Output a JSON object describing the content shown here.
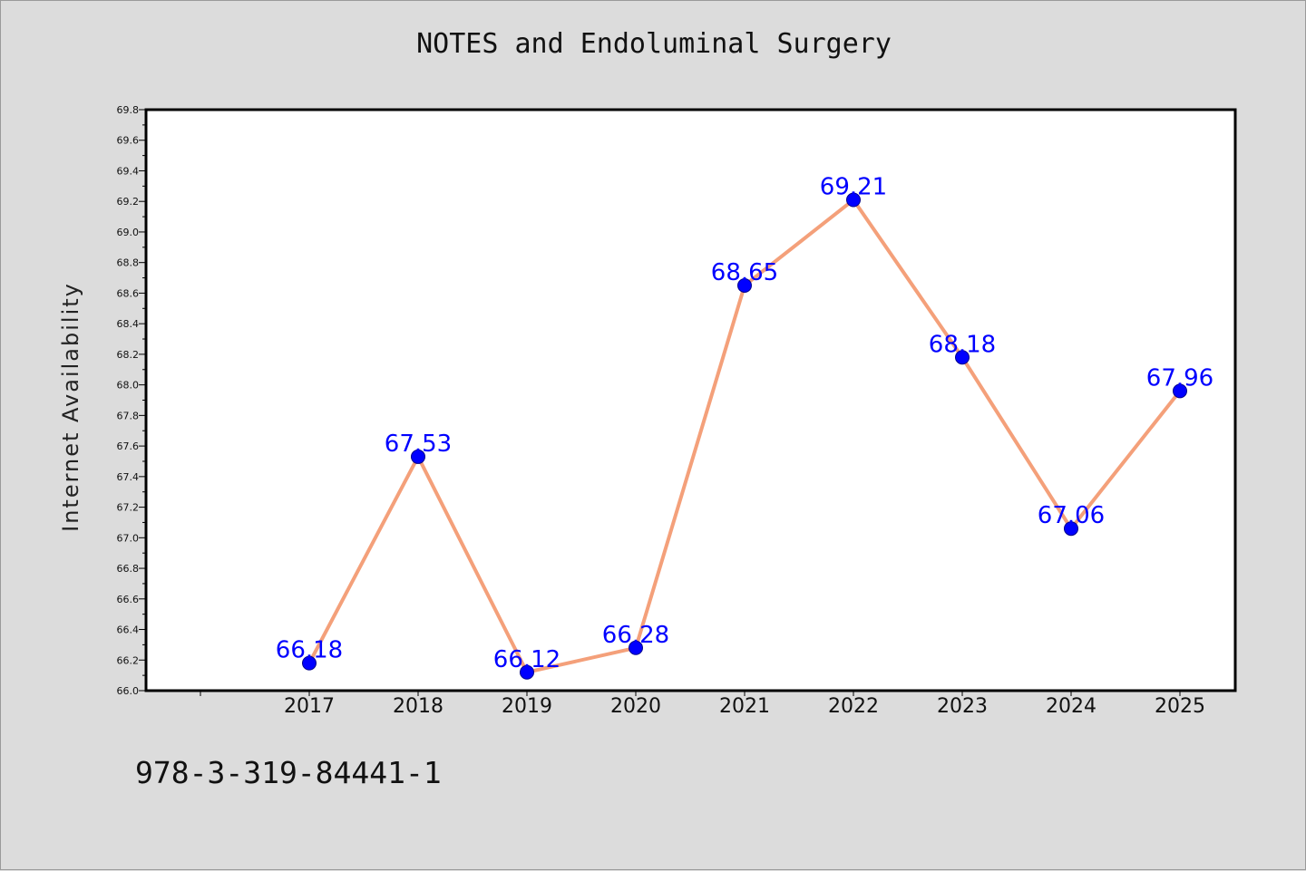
{
  "title": "NOTES and Endoluminal Surgery",
  "footer": "978-3-319-84441-1",
  "chart_data": {
    "type": "line",
    "title": "NOTES and Endoluminal Surgery",
    "xlabel": "",
    "ylabel": "Internet Availability",
    "x": [
      "2017",
      "2018",
      "2019",
      "2020",
      "2021",
      "2022",
      "2023",
      "2024",
      "2025"
    ],
    "series": [
      {
        "values": [
          66.18,
          67.53,
          66.12,
          66.28,
          68.65,
          69.21,
          68.18,
          67.06,
          67.96
        ]
      }
    ],
    "data_labels": [
      "66.18",
      "67.53",
      "66.12",
      "66.28",
      "68.65",
      "69.21",
      "68.18",
      "67.06",
      "67.96"
    ],
    "ylim": [
      66.0,
      69.8
    ],
    "ytick_labels": [
      "66.0",
      "66.2",
      "66.4",
      "66.6",
      "66.8",
      "67.0",
      "67.2",
      "67.4",
      "67.6",
      "67.8",
      "68.0",
      "68.2",
      "68.4",
      "68.6",
      "68.8",
      "69.0",
      "69.2",
      "69.4",
      "69.6",
      "69.8"
    ],
    "grid": false,
    "colors": {
      "line": "#f4a07a",
      "marker": "#0000ff",
      "marker_edge": "#00008b",
      "label": "#0000ff",
      "plot_bg": "#ffffff",
      "page_bg": "#dcdcdc"
    }
  }
}
